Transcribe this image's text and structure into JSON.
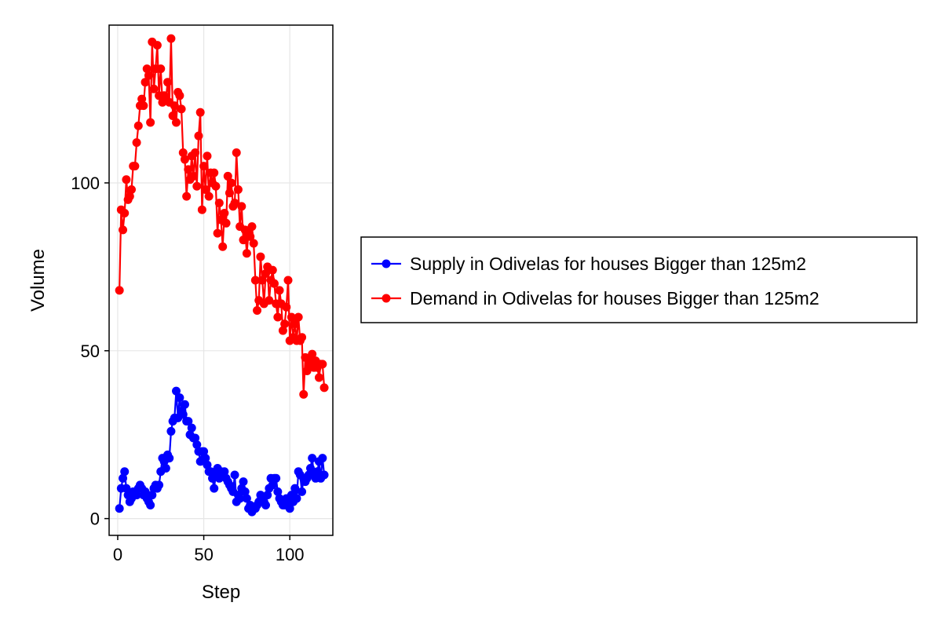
{
  "chart_data": {
    "type": "line",
    "title": "",
    "xlabel": "Step",
    "ylabel": "Volume",
    "xlim": [
      -5,
      125
    ],
    "ylim": [
      -5,
      147
    ],
    "x_ticks": [
      0,
      50,
      100
    ],
    "y_ticks": [
      0,
      50,
      100
    ],
    "grid": true,
    "legend_position": "right",
    "series": [
      {
        "name": "Supply in Odivelas for houses Bigger than 125m2",
        "color": "#0000ff",
        "x": [
          1,
          2,
          3,
          4,
          5,
          6,
          7,
          8,
          9,
          10,
          11,
          12,
          13,
          14,
          15,
          16,
          17,
          18,
          19,
          20,
          21,
          22,
          23,
          24,
          25,
          26,
          27,
          28,
          29,
          30,
          31,
          32,
          33,
          34,
          35,
          36,
          37,
          38,
          39,
          40,
          41,
          42,
          43,
          44,
          45,
          46,
          47,
          48,
          49,
          50,
          51,
          52,
          53,
          54,
          55,
          56,
          57,
          58,
          59,
          60,
          61,
          62,
          63,
          64,
          65,
          66,
          67,
          68,
          69,
          70,
          71,
          72,
          73,
          74,
          75,
          76,
          77,
          78,
          79,
          80,
          81,
          82,
          83,
          84,
          85,
          86,
          87,
          88,
          89,
          90,
          91,
          92,
          93,
          94,
          95,
          96,
          97,
          98,
          99,
          100,
          101,
          102,
          103,
          104,
          105,
          106,
          107,
          108,
          109,
          110,
          111,
          112,
          113,
          114,
          115,
          116,
          117,
          118,
          119,
          120
        ],
        "y": [
          3,
          9,
          12,
          14,
          9,
          7,
          5,
          6,
          8,
          7,
          7,
          9,
          10,
          9,
          7,
          8,
          6,
          5,
          4,
          7,
          9,
          10,
          9,
          10,
          14,
          18,
          17,
          15,
          19,
          18,
          26,
          29,
          30,
          38,
          30,
          36,
          32,
          31,
          34,
          29,
          29,
          25,
          27,
          24,
          24,
          22,
          20,
          17,
          20,
          20,
          18,
          16,
          14,
          14,
          12,
          9,
          13,
          15,
          12,
          14,
          13,
          14,
          12,
          11,
          10,
          9,
          8,
          13,
          5,
          7,
          6,
          9,
          11,
          8,
          6,
          3,
          4,
          2,
          3,
          3,
          4,
          5,
          7,
          6,
          5,
          4,
          7,
          9,
          12,
          10,
          12,
          12,
          8,
          6,
          5,
          4,
          4,
          6,
          5,
          3,
          7,
          5,
          9,
          6,
          14,
          13,
          8,
          12,
          11,
          12,
          13,
          15,
          18,
          13,
          12,
          14,
          17,
          12,
          18,
          13
        ]
      },
      {
        "name": "Demand in Odivelas for houses Bigger than 125m2",
        "color": "#ff0000",
        "x": [
          1,
          2,
          3,
          4,
          5,
          6,
          7,
          8,
          9,
          10,
          11,
          12,
          13,
          14,
          15,
          16,
          17,
          18,
          19,
          20,
          21,
          22,
          23,
          24,
          25,
          26,
          27,
          28,
          29,
          30,
          31,
          32,
          33,
          34,
          35,
          36,
          37,
          38,
          39,
          40,
          41,
          42,
          43,
          44,
          45,
          46,
          47,
          48,
          49,
          50,
          51,
          52,
          53,
          54,
          55,
          56,
          57,
          58,
          59,
          60,
          61,
          62,
          63,
          64,
          65,
          66,
          67,
          68,
          69,
          70,
          71,
          72,
          73,
          74,
          75,
          76,
          77,
          78,
          79,
          80,
          81,
          82,
          83,
          84,
          85,
          86,
          87,
          88,
          89,
          90,
          91,
          92,
          93,
          94,
          95,
          96,
          97,
          98,
          99,
          100,
          101,
          102,
          103,
          104,
          105,
          106,
          107,
          108,
          109,
          110,
          111,
          112,
          113,
          114,
          115,
          116,
          117,
          118,
          119,
          120
        ],
        "y": [
          68,
          92,
          86,
          91,
          101,
          95,
          96,
          98,
          105,
          105,
          112,
          117,
          123,
          125,
          123,
          130,
          134,
          132,
          118,
          142,
          128,
          134,
          141,
          126,
          134,
          124,
          126,
          125,
          130,
          124,
          143,
          120,
          123,
          118,
          127,
          126,
          122,
          109,
          107,
          96,
          104,
          101,
          108,
          102,
          109,
          99,
          114,
          121,
          92,
          105,
          98,
          108,
          96,
          103,
          100,
          103,
          99,
          85,
          94,
          89,
          81,
          91,
          88,
          102,
          97,
          100,
          93,
          94,
          109,
          98,
          87,
          93,
          83,
          86,
          79,
          85,
          84,
          87,
          82,
          71,
          62,
          65,
          78,
          71,
          64,
          73,
          75,
          65,
          71,
          74,
          70,
          64,
          60,
          68,
          64,
          56,
          58,
          63,
          71,
          53,
          60,
          54,
          58,
          53,
          60,
          53,
          54,
          37,
          48,
          44,
          47,
          46,
          49,
          45,
          47,
          45,
          42,
          46,
          46,
          39
        ]
      }
    ]
  }
}
